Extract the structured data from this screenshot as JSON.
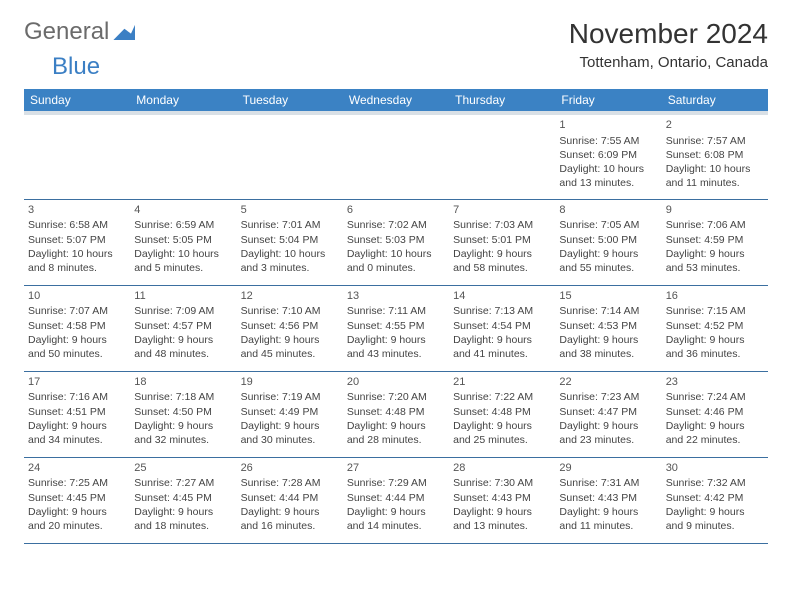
{
  "brand": {
    "part1": "General",
    "part2": "Blue"
  },
  "title": "November 2024",
  "location": "Tottenham, Ontario, Canada",
  "dayHeaders": [
    "Sunday",
    "Monday",
    "Tuesday",
    "Wednesday",
    "Thursday",
    "Friday",
    "Saturday"
  ],
  "style": {
    "header_bg": "#3b82c4",
    "header_fg": "#ffffff",
    "row_border": "#3b6fa0",
    "header_underband": "#d9e0e6",
    "body_bg": "#ffffff",
    "text_color": "#333333",
    "cell_font_size_pt": 8,
    "header_font_size_pt": 9,
    "title_font_size_pt": 21,
    "location_font_size_pt": 11
  },
  "weeks": [
    [
      null,
      null,
      null,
      null,
      null,
      {
        "n": "1",
        "sr": "Sunrise: 7:55 AM",
        "ss": "Sunset: 6:09 PM",
        "d1": "Daylight: 10 hours",
        "d2": "and 13 minutes."
      },
      {
        "n": "2",
        "sr": "Sunrise: 7:57 AM",
        "ss": "Sunset: 6:08 PM",
        "d1": "Daylight: 10 hours",
        "d2": "and 11 minutes."
      }
    ],
    [
      {
        "n": "3",
        "sr": "Sunrise: 6:58 AM",
        "ss": "Sunset: 5:07 PM",
        "d1": "Daylight: 10 hours",
        "d2": "and 8 minutes."
      },
      {
        "n": "4",
        "sr": "Sunrise: 6:59 AM",
        "ss": "Sunset: 5:05 PM",
        "d1": "Daylight: 10 hours",
        "d2": "and 5 minutes."
      },
      {
        "n": "5",
        "sr": "Sunrise: 7:01 AM",
        "ss": "Sunset: 5:04 PM",
        "d1": "Daylight: 10 hours",
        "d2": "and 3 minutes."
      },
      {
        "n": "6",
        "sr": "Sunrise: 7:02 AM",
        "ss": "Sunset: 5:03 PM",
        "d1": "Daylight: 10 hours",
        "d2": "and 0 minutes."
      },
      {
        "n": "7",
        "sr": "Sunrise: 7:03 AM",
        "ss": "Sunset: 5:01 PM",
        "d1": "Daylight: 9 hours",
        "d2": "and 58 minutes."
      },
      {
        "n": "8",
        "sr": "Sunrise: 7:05 AM",
        "ss": "Sunset: 5:00 PM",
        "d1": "Daylight: 9 hours",
        "d2": "and 55 minutes."
      },
      {
        "n": "9",
        "sr": "Sunrise: 7:06 AM",
        "ss": "Sunset: 4:59 PM",
        "d1": "Daylight: 9 hours",
        "d2": "and 53 minutes."
      }
    ],
    [
      {
        "n": "10",
        "sr": "Sunrise: 7:07 AM",
        "ss": "Sunset: 4:58 PM",
        "d1": "Daylight: 9 hours",
        "d2": "and 50 minutes."
      },
      {
        "n": "11",
        "sr": "Sunrise: 7:09 AM",
        "ss": "Sunset: 4:57 PM",
        "d1": "Daylight: 9 hours",
        "d2": "and 48 minutes."
      },
      {
        "n": "12",
        "sr": "Sunrise: 7:10 AM",
        "ss": "Sunset: 4:56 PM",
        "d1": "Daylight: 9 hours",
        "d2": "and 45 minutes."
      },
      {
        "n": "13",
        "sr": "Sunrise: 7:11 AM",
        "ss": "Sunset: 4:55 PM",
        "d1": "Daylight: 9 hours",
        "d2": "and 43 minutes."
      },
      {
        "n": "14",
        "sr": "Sunrise: 7:13 AM",
        "ss": "Sunset: 4:54 PM",
        "d1": "Daylight: 9 hours",
        "d2": "and 41 minutes."
      },
      {
        "n": "15",
        "sr": "Sunrise: 7:14 AM",
        "ss": "Sunset: 4:53 PM",
        "d1": "Daylight: 9 hours",
        "d2": "and 38 minutes."
      },
      {
        "n": "16",
        "sr": "Sunrise: 7:15 AM",
        "ss": "Sunset: 4:52 PM",
        "d1": "Daylight: 9 hours",
        "d2": "and 36 minutes."
      }
    ],
    [
      {
        "n": "17",
        "sr": "Sunrise: 7:16 AM",
        "ss": "Sunset: 4:51 PM",
        "d1": "Daylight: 9 hours",
        "d2": "and 34 minutes."
      },
      {
        "n": "18",
        "sr": "Sunrise: 7:18 AM",
        "ss": "Sunset: 4:50 PM",
        "d1": "Daylight: 9 hours",
        "d2": "and 32 minutes."
      },
      {
        "n": "19",
        "sr": "Sunrise: 7:19 AM",
        "ss": "Sunset: 4:49 PM",
        "d1": "Daylight: 9 hours",
        "d2": "and 30 minutes."
      },
      {
        "n": "20",
        "sr": "Sunrise: 7:20 AM",
        "ss": "Sunset: 4:48 PM",
        "d1": "Daylight: 9 hours",
        "d2": "and 28 minutes."
      },
      {
        "n": "21",
        "sr": "Sunrise: 7:22 AM",
        "ss": "Sunset: 4:48 PM",
        "d1": "Daylight: 9 hours",
        "d2": "and 25 minutes."
      },
      {
        "n": "22",
        "sr": "Sunrise: 7:23 AM",
        "ss": "Sunset: 4:47 PM",
        "d1": "Daylight: 9 hours",
        "d2": "and 23 minutes."
      },
      {
        "n": "23",
        "sr": "Sunrise: 7:24 AM",
        "ss": "Sunset: 4:46 PM",
        "d1": "Daylight: 9 hours",
        "d2": "and 22 minutes."
      }
    ],
    [
      {
        "n": "24",
        "sr": "Sunrise: 7:25 AM",
        "ss": "Sunset: 4:45 PM",
        "d1": "Daylight: 9 hours",
        "d2": "and 20 minutes."
      },
      {
        "n": "25",
        "sr": "Sunrise: 7:27 AM",
        "ss": "Sunset: 4:45 PM",
        "d1": "Daylight: 9 hours",
        "d2": "and 18 minutes."
      },
      {
        "n": "26",
        "sr": "Sunrise: 7:28 AM",
        "ss": "Sunset: 4:44 PM",
        "d1": "Daylight: 9 hours",
        "d2": "and 16 minutes."
      },
      {
        "n": "27",
        "sr": "Sunrise: 7:29 AM",
        "ss": "Sunset: 4:44 PM",
        "d1": "Daylight: 9 hours",
        "d2": "and 14 minutes."
      },
      {
        "n": "28",
        "sr": "Sunrise: 7:30 AM",
        "ss": "Sunset: 4:43 PM",
        "d1": "Daylight: 9 hours",
        "d2": "and 13 minutes."
      },
      {
        "n": "29",
        "sr": "Sunrise: 7:31 AM",
        "ss": "Sunset: 4:43 PM",
        "d1": "Daylight: 9 hours",
        "d2": "and 11 minutes."
      },
      {
        "n": "30",
        "sr": "Sunrise: 7:32 AM",
        "ss": "Sunset: 4:42 PM",
        "d1": "Daylight: 9 hours",
        "d2": "and 9 minutes."
      }
    ]
  ]
}
